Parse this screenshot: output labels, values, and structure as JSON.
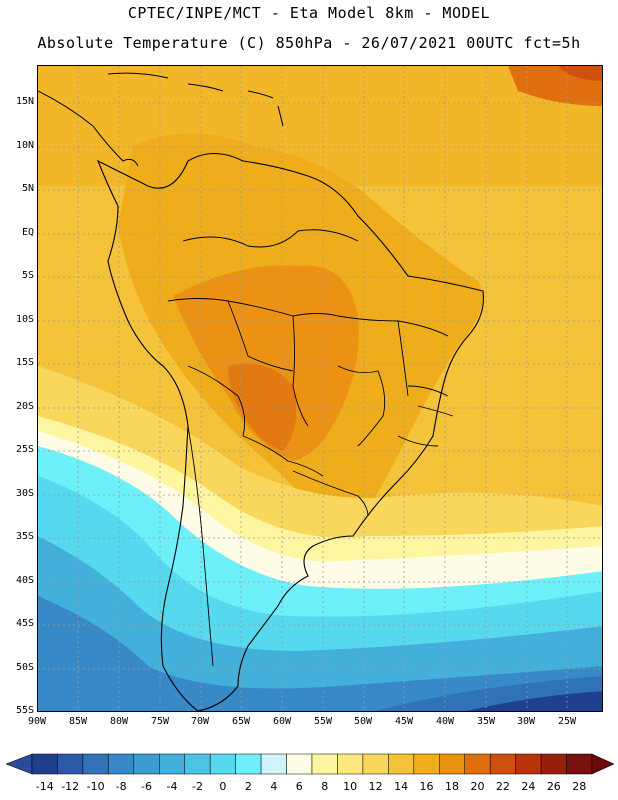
{
  "header": {
    "line1": "CPTEC/INPE/MCT -  Eta Model 8km - MODEL",
    "line2": "Absolute Temperature (C) 850hPa - 26/07/2021 00UTC fct=5h"
  },
  "axes": {
    "lat_labels": [
      "15N",
      "10N",
      "5N",
      "EQ",
      "5S",
      "10S",
      "15S",
      "20S",
      "25S",
      "30S",
      "35S",
      "40S",
      "45S",
      "50S",
      "55S"
    ],
    "lon_labels": [
      "90W",
      "85W",
      "80W",
      "75W",
      "70W",
      "65W",
      "60W",
      "55W",
      "50W",
      "45W",
      "40W",
      "35W",
      "30W",
      "25W"
    ]
  },
  "colorbar": {
    "labels": [
      "-14",
      "-12",
      "-10",
      "-8",
      "-6",
      "-4",
      "-2",
      "0",
      "2",
      "4",
      "6",
      "8",
      "10",
      "12",
      "14",
      "16",
      "18",
      "20",
      "22",
      "24",
      "26",
      "28"
    ],
    "colors": [
      "#1f3f8f",
      "#2a5aa8",
      "#2f72b8",
      "#3789c8",
      "#3c9bd2",
      "#43b0dc",
      "#4cc4e6",
      "#56d8ee",
      "#6df0fa",
      "#cff4fb",
      "#fefbe6",
      "#fdf5a0",
      "#fde880",
      "#f9d65c",
      "#f4c339",
      "#f0ad1b",
      "#eb9215",
      "#e06f10",
      "#cf500c",
      "#b8330a",
      "#991e0d",
      "#7a1010"
    ],
    "low_color": "#2a4a9a",
    "high_color": "#6a0a0a"
  }
}
